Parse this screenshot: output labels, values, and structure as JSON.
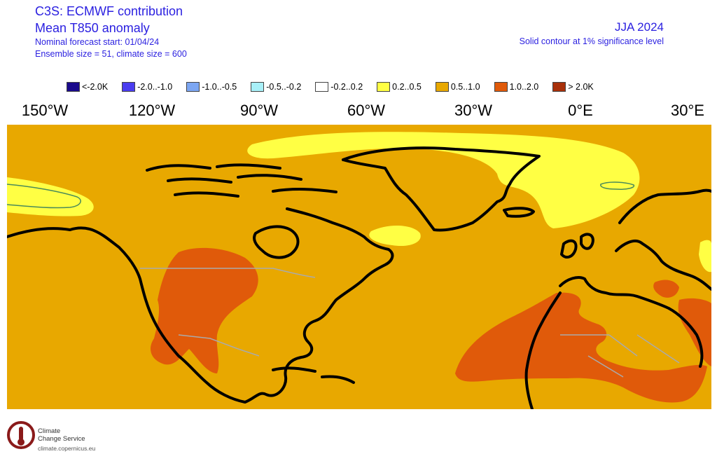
{
  "header": {
    "title": "C3S: ECMWF contribution",
    "subtitle": "Mean T850 anomaly",
    "forecast_start": "Nominal forecast start: 01/04/24",
    "ensemble": "Ensemble size = 51, climate size = 600",
    "season": "JJA 2024",
    "significance": "Solid contour at 1% significance level"
  },
  "legend": [
    {
      "label": "<-2.0K",
      "color": "#1a0a8c"
    },
    {
      "label": "-2.0..-1.0",
      "color": "#4a3cf0"
    },
    {
      "label": "-1.0..-0.5",
      "color": "#7ca6f2"
    },
    {
      "label": "-0.5..-0.2",
      "color": "#a8f0f8"
    },
    {
      "label": "-0.2..0.2",
      "color": "#ffffff"
    },
    {
      "label": "0.2..0.5",
      "color": "#ffff44"
    },
    {
      "label": "0.5..1.0",
      "color": "#e8a800"
    },
    {
      "label": "1.0..2.0",
      "color": "#e05a0a"
    },
    {
      "label": "> 2.0K",
      "color": "#a8300a"
    }
  ],
  "longitude_labels": [
    "150°W",
    "120°W",
    "90°W",
    "60°W",
    "30°W",
    "0°E",
    "30°E"
  ],
  "logo": {
    "line1": "Climate",
    "line2": "Change Service",
    "url": "climate.copernicus.eu"
  }
}
